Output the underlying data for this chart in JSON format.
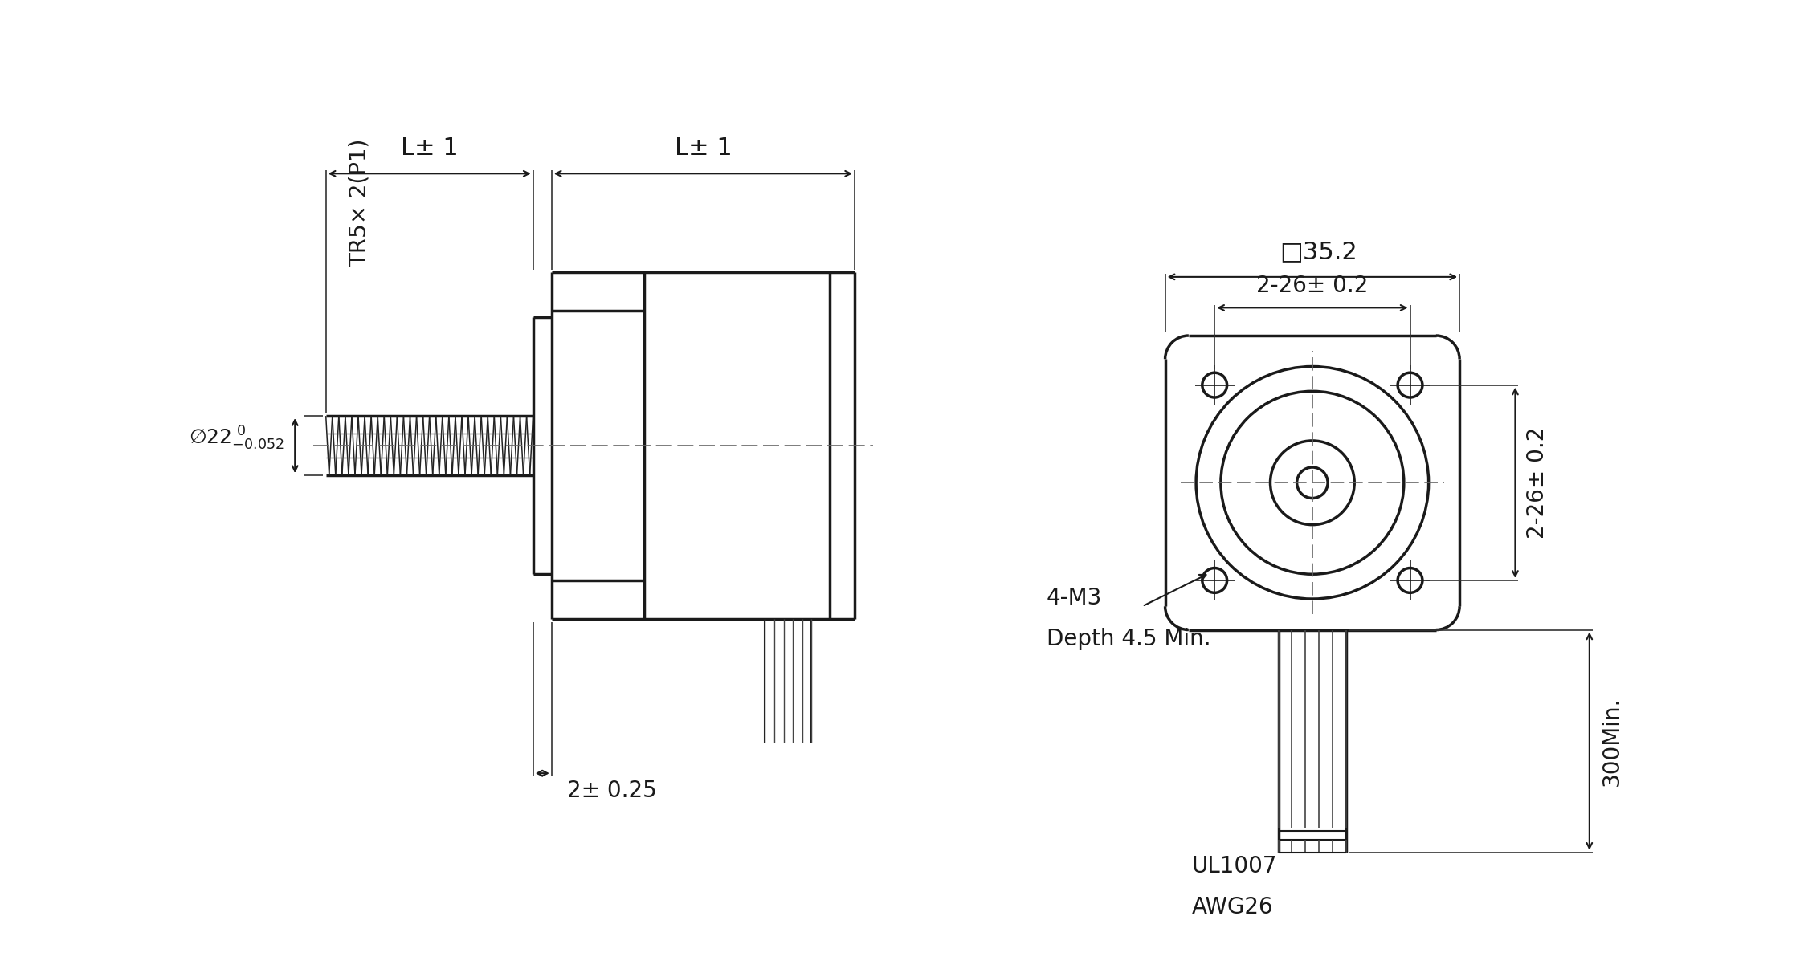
{
  "bg_color": "#ffffff",
  "line_color": "#1a1a1a",
  "fig_width": 22.46,
  "fig_height": 12.12,
  "annotations": {
    "TR5x2P1": "TR5× 2(P1)",
    "L1": "L± 1",
    "L2": "L± 1",
    "two_025": "2± 0.25",
    "sq35": "□35.2",
    "dim_26h": "2-26± 0.2",
    "dim_26v": "2-26± 0.2",
    "m3": "4-M3",
    "depth": "Depth 4.5 Min.",
    "wire300": "300Min.",
    "ul1007": "UL1007",
    "awg26": "AWG26"
  }
}
